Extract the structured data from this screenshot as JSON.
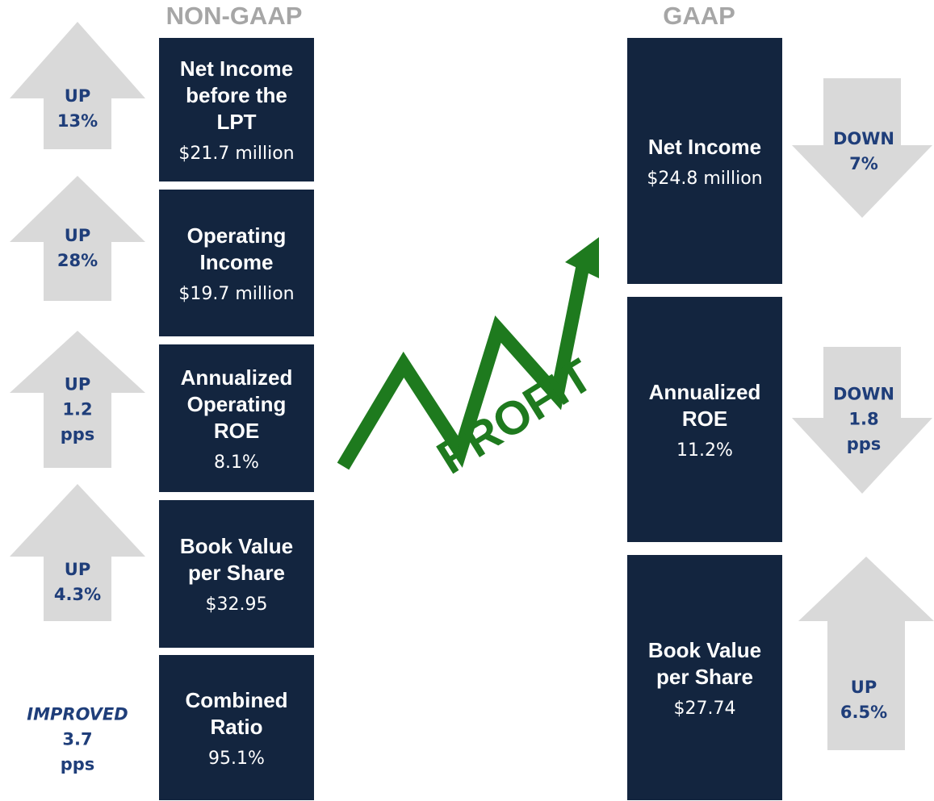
{
  "headers": {
    "non_gaap": "NON-GAAP",
    "gaap": "GAAP"
  },
  "non_gaap": [
    {
      "title_lines": [
        "Net Income",
        "before the",
        "LPT"
      ],
      "value": "$21.7 million",
      "change": [
        "UP",
        "13%"
      ]
    },
    {
      "title_lines": [
        "Operating",
        "Income"
      ],
      "value": "$19.7 million",
      "change": [
        "UP",
        "28%"
      ]
    },
    {
      "title_lines": [
        "Annualized",
        "Operating",
        "ROE"
      ],
      "value": "8.1%",
      "change": [
        "UP",
        "1.2",
        "pps"
      ]
    },
    {
      "title_lines": [
        "Book Value",
        "per Share"
      ],
      "value": "$32.95",
      "change": [
        "UP",
        "4.3%"
      ]
    },
    {
      "title_lines": [
        "Combined",
        "Ratio"
      ],
      "value": "95.1%",
      "change": [
        "IMPROVED",
        "3.7",
        "pps"
      ]
    }
  ],
  "gaap": [
    {
      "title_lines": [
        "Net Income"
      ],
      "value": "$24.8 million",
      "change": [
        "DOWN",
        "7%"
      ]
    },
    {
      "title_lines": [
        "Annualized",
        "ROE"
      ],
      "value": "11.2%",
      "change": [
        "DOWN",
        "1.8",
        "pps"
      ]
    },
    {
      "title_lines": [
        "Book Value",
        "per Share"
      ],
      "value": "$27.74",
      "change": [
        "UP",
        "6.5%"
      ]
    }
  ],
  "graphic_label": "PROFIT"
}
